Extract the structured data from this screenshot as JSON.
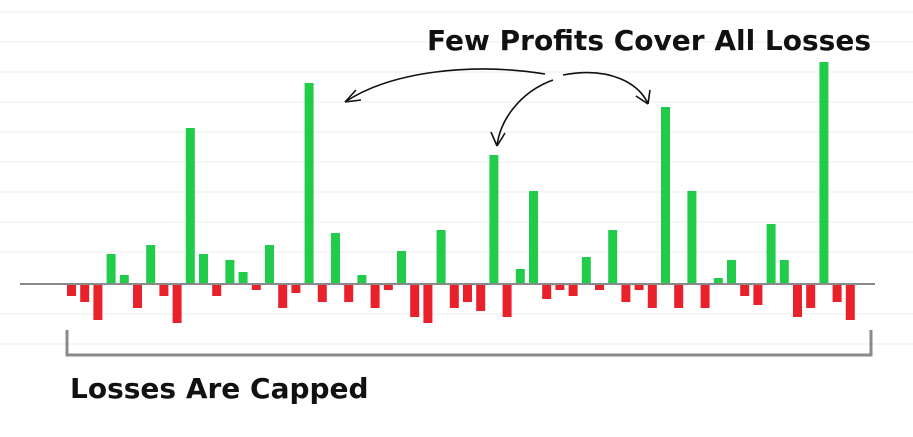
{
  "chart_data": {
    "type": "bar",
    "title": "",
    "xlabel": "",
    "ylabel": "",
    "grid": true,
    "colors": {
      "profit": "#22cc4b",
      "loss": "#e8212b",
      "baseline": "#8a8a8a",
      "bracket": "#8a8a8a"
    },
    "ylim": [
      -3,
      10
    ],
    "values": [
      -0.4,
      -0.6,
      -1.2,
      1.0,
      0.3,
      -0.8,
      1.3,
      -0.4,
      -1.3,
      5.2,
      1.0,
      -0.4,
      0.8,
      0.4,
      -0.2,
      1.3,
      -0.8,
      -0.3,
      6.7,
      -0.6,
      1.7,
      -0.6,
      0.3,
      -0.8,
      -0.2,
      1.1,
      -1.1,
      -1.3,
      1.8,
      -0.8,
      -0.6,
      -0.9,
      4.3,
      -1.1,
      0.5,
      3.1,
      -0.5,
      -0.2,
      -0.4,
      0.9,
      -0.2,
      1.8,
      -0.6,
      -0.2,
      -0.8,
      5.9,
      -0.8,
      3.1,
      -0.8,
      0.2,
      0.8,
      -0.4,
      -0.7,
      2.0,
      0.8,
      -1.1,
      -0.8,
      7.4,
      -0.6,
      -1.2
    ]
  },
  "annotations": {
    "title": "Few Profits Cover All Losses",
    "footer": "Losses Are Capped"
  }
}
